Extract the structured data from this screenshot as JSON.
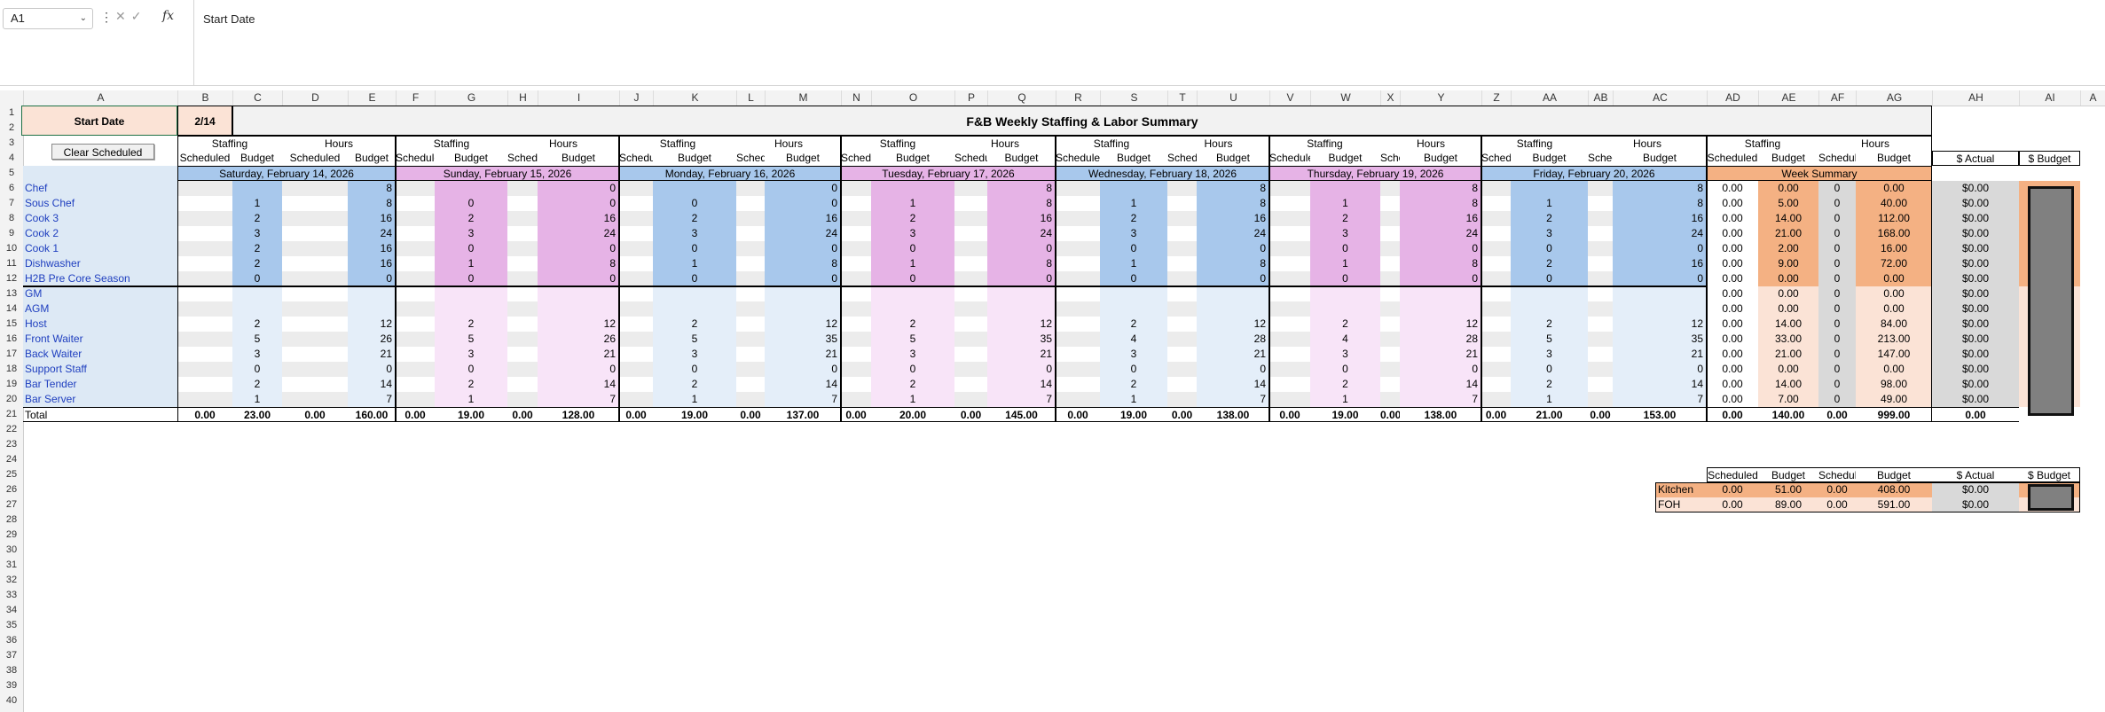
{
  "formula_bar": {
    "name_box": "A1",
    "fx": "fx",
    "formula": "Start Date"
  },
  "columns": [
    "A",
    "B",
    "C",
    "D",
    "E",
    "F",
    "G",
    "H",
    "I",
    "J",
    "K",
    "L",
    "M",
    "N",
    "O",
    "P",
    "Q",
    "R",
    "S",
    "T",
    "U",
    "V",
    "W",
    "X",
    "Y",
    "Z",
    "AA",
    "AB",
    "AC",
    "AD",
    "AE",
    "AF",
    "AG",
    "AH",
    "AI",
    "A"
  ],
  "rows": [
    "1",
    "2",
    "3",
    "4",
    "5",
    "6",
    "7",
    "8",
    "9",
    "10",
    "11",
    "12",
    "13",
    "14",
    "15",
    "16",
    "17",
    "18",
    "19",
    "20",
    "21",
    "22",
    "23",
    "24",
    "25",
    "26",
    "27",
    "28",
    "29",
    "30",
    "31",
    "32",
    "33",
    "34",
    "35",
    "36",
    "37",
    "38",
    "39",
    "40"
  ],
  "sheet": {
    "start_date_label": "Start Date",
    "start_date_value": "2/14",
    "title": "F&B Weekly Staffing & Labor Summary",
    "clear_button": "Clear Scheduled",
    "group_staffing": "Staffing",
    "group_hours": "Hours",
    "sub_scheduled": "Scheduled",
    "sub_budget": "Budget",
    "actual_header": "$ Actual",
    "budget_header": "$ Budget",
    "days": [
      {
        "label": "Saturday, February 14, 2026",
        "color": "#a8c8ec",
        "light": "#e4eef9",
        "ssb": [
          "",
          "1",
          "2",
          "3",
          "2",
          "2",
          "0",
          "",
          "",
          "2",
          "5",
          "3",
          "0",
          "2",
          "1"
        ],
        "hb": [
          "8",
          "8",
          "16",
          "24",
          "16",
          "16",
          "0",
          "",
          "",
          "12",
          "26",
          "21",
          "0",
          "14",
          "7"
        ],
        "tot": [
          "0.00",
          "23.00",
          "0.00",
          "160.00"
        ]
      },
      {
        "label": "Sunday, February 15, 2026",
        "color": "#e6b3e6",
        "light": "#f8e4f8",
        "ssb": [
          "",
          "0",
          "2",
          "3",
          "0",
          "1",
          "0",
          "",
          "",
          "2",
          "5",
          "3",
          "0",
          "2",
          "1"
        ],
        "hb": [
          "0",
          "0",
          "16",
          "24",
          "0",
          "8",
          "0",
          "",
          "",
          "12",
          "26",
          "21",
          "0",
          "14",
          "7"
        ],
        "tot": [
          "0.00",
          "19.00",
          "0.00",
          "128.00"
        ]
      },
      {
        "label": "Monday, February 16, 2026",
        "color": "#a8c8ec",
        "light": "#e4eef9",
        "ssb": [
          "",
          "0",
          "2",
          "3",
          "0",
          "1",
          "0",
          "",
          "",
          "2",
          "5",
          "3",
          "0",
          "2",
          "1"
        ],
        "hb": [
          "0",
          "0",
          "16",
          "24",
          "0",
          "8",
          "0",
          "",
          "",
          "12",
          "35",
          "21",
          "0",
          "14",
          "7"
        ],
        "tot": [
          "0.00",
          "19.00",
          "0.00",
          "137.00"
        ]
      },
      {
        "label": "Tuesday, February 17, 2026",
        "color": "#e6b3e6",
        "light": "#f8e4f8",
        "ssb": [
          "",
          "1",
          "2",
          "3",
          "0",
          "1",
          "0",
          "",
          "",
          "2",
          "5",
          "3",
          "0",
          "2",
          "1"
        ],
        "hb": [
          "8",
          "8",
          "16",
          "24",
          "0",
          "8",
          "0",
          "",
          "",
          "12",
          "35",
          "21",
          "0",
          "14",
          "7"
        ],
        "tot": [
          "0.00",
          "20.00",
          "0.00",
          "145.00"
        ]
      },
      {
        "label": "Wednesday, February 18, 2026",
        "color": "#a8c8ec",
        "light": "#e4eef9",
        "ssb": [
          "",
          "1",
          "2",
          "3",
          "0",
          "1",
          "0",
          "",
          "",
          "2",
          "4",
          "3",
          "0",
          "2",
          "1"
        ],
        "hb": [
          "8",
          "8",
          "16",
          "24",
          "0",
          "8",
          "0",
          "",
          "",
          "12",
          "28",
          "21",
          "0",
          "14",
          "7"
        ],
        "tot": [
          "0.00",
          "19.00",
          "0.00",
          "138.00"
        ]
      },
      {
        "label": "Thursday, February 19, 2026",
        "color": "#e6b3e6",
        "light": "#f8e4f8",
        "ssb": [
          "",
          "1",
          "2",
          "3",
          "0",
          "1",
          "0",
          "",
          "",
          "2",
          "4",
          "3",
          "0",
          "2",
          "1"
        ],
        "hb": [
          "8",
          "8",
          "16",
          "24",
          "0",
          "8",
          "0",
          "",
          "",
          "12",
          "28",
          "21",
          "0",
          "14",
          "7"
        ],
        "tot": [
          "0.00",
          "19.00",
          "0.00",
          "138.00"
        ]
      },
      {
        "label": "Friday, February 20, 2026",
        "color": "#a8c8ec",
        "light": "#e4eef9",
        "ssb": [
          "",
          "1",
          "2",
          "3",
          "0",
          "2",
          "0",
          "",
          "",
          "2",
          "5",
          "3",
          "0",
          "2",
          "1"
        ],
        "hb": [
          "8",
          "8",
          "16",
          "24",
          "0",
          "16",
          "0",
          "",
          "",
          "12",
          "35",
          "21",
          "0",
          "14",
          "7"
        ],
        "tot": [
          "0.00",
          "21.00",
          "0.00",
          "153.00"
        ]
      }
    ],
    "positions": [
      "Chef",
      "Sous Chef",
      "Cook 3",
      "Cook 2",
      "Cook 1",
      "Dishwasher",
      "H2B Pre Core Season",
      "GM",
      "AGM",
      "Host",
      "Front Waiter",
      "Back Waiter",
      "Support Staff",
      "Bar Tender",
      "Bar Server"
    ],
    "total_label": "Total",
    "week_summary_label": "Week Summary",
    "summary_rows": [
      [
        "0.00",
        "0.00",
        "0",
        "0.00",
        "$0.00"
      ],
      [
        "0.00",
        "5.00",
        "0",
        "40.00",
        "$0.00"
      ],
      [
        "0.00",
        "14.00",
        "0",
        "112.00",
        "$0.00"
      ],
      [
        "0.00",
        "21.00",
        "0",
        "168.00",
        "$0.00"
      ],
      [
        "0.00",
        "2.00",
        "0",
        "16.00",
        "$0.00"
      ],
      [
        "0.00",
        "9.00",
        "0",
        "72.00",
        "$0.00"
      ],
      [
        "0.00",
        "0.00",
        "0",
        "0.00",
        "$0.00"
      ],
      [
        "0.00",
        "0.00",
        "0",
        "0.00",
        "$0.00"
      ],
      [
        "0.00",
        "0.00",
        "0",
        "0.00",
        "$0.00"
      ],
      [
        "0.00",
        "14.00",
        "0",
        "84.00",
        "$0.00"
      ],
      [
        "0.00",
        "33.00",
        "0",
        "213.00",
        "$0.00"
      ],
      [
        "0.00",
        "21.00",
        "0",
        "147.00",
        "$0.00"
      ],
      [
        "0.00",
        "0.00",
        "0",
        "0.00",
        "$0.00"
      ],
      [
        "0.00",
        "14.00",
        "0",
        "98.00",
        "$0.00"
      ],
      [
        "0.00",
        "7.00",
        "0",
        "49.00",
        "$0.00"
      ]
    ],
    "summary_total": [
      "0.00",
      "140.00",
      "0.00",
      "999.00",
      "0.00"
    ],
    "dept": {
      "headers": [
        "Scheduled",
        "Budget",
        "Scheduled",
        "Budget",
        "$ Actual",
        "$ Budget"
      ],
      "rows": [
        {
          "name": "Kitchen",
          "vals": [
            "0.00",
            "51.00",
            "0.00",
            "408.00",
            "$0.00"
          ]
        },
        {
          "name": "FOH",
          "vals": [
            "0.00",
            "89.00",
            "0.00",
            "591.00",
            "$0.00"
          ]
        }
      ]
    }
  },
  "colors": {
    "kitchen": "#f4b183",
    "kitchen_light": "#fbe3d6",
    "gray": "#d9d9d9",
    "budget_box": "#808080",
    "name_col": "#dde9f5",
    "name_text": "#1f3fbf"
  }
}
